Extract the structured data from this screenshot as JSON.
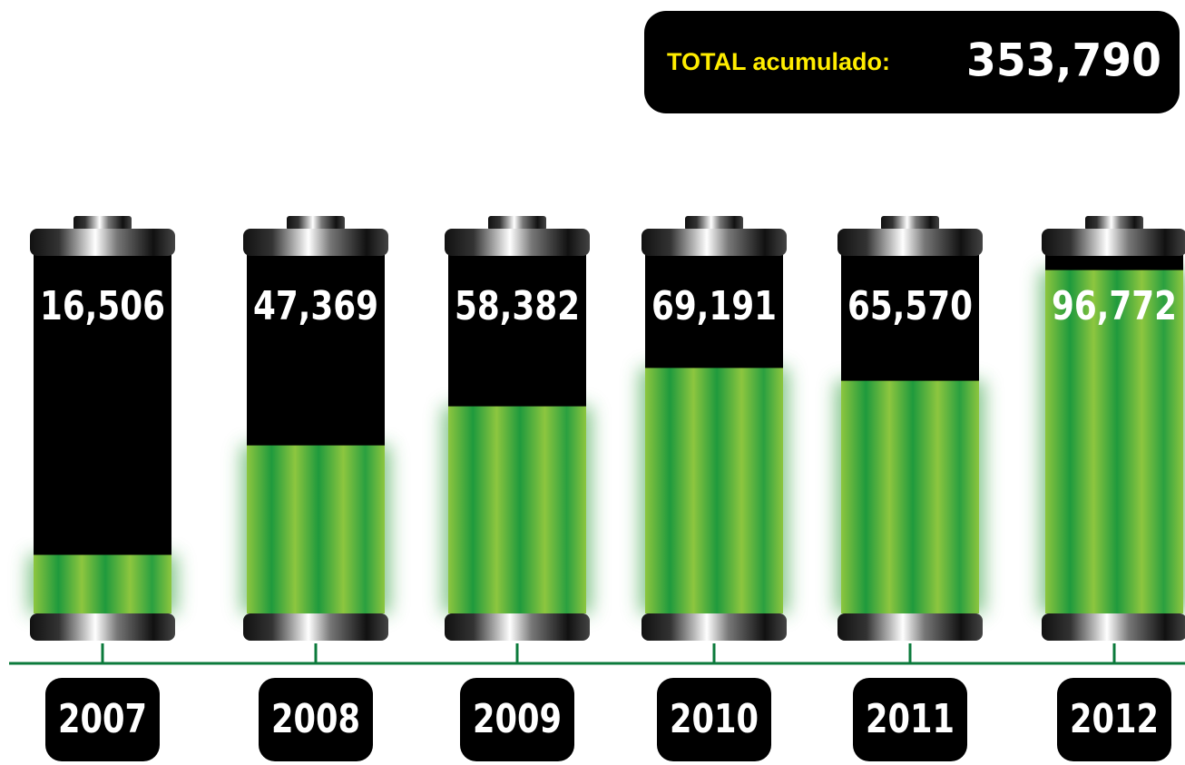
{
  "chart_data": {
    "type": "bar",
    "total": {
      "label": "TOTAL acumulado:",
      "value": 353790,
      "value_label": "353,790"
    },
    "categories": [
      "2007",
      "2008",
      "2009",
      "2010",
      "2011",
      "2012"
    ],
    "values": [
      16506,
      47369,
      58382,
      69191,
      65570,
      96772
    ],
    "value_labels": [
      "16,506",
      "47,369",
      "58,382",
      "69,191",
      "65,570",
      "96,772"
    ],
    "ylim": [
      0,
      100000
    ],
    "color": "#2e9e3e"
  }
}
